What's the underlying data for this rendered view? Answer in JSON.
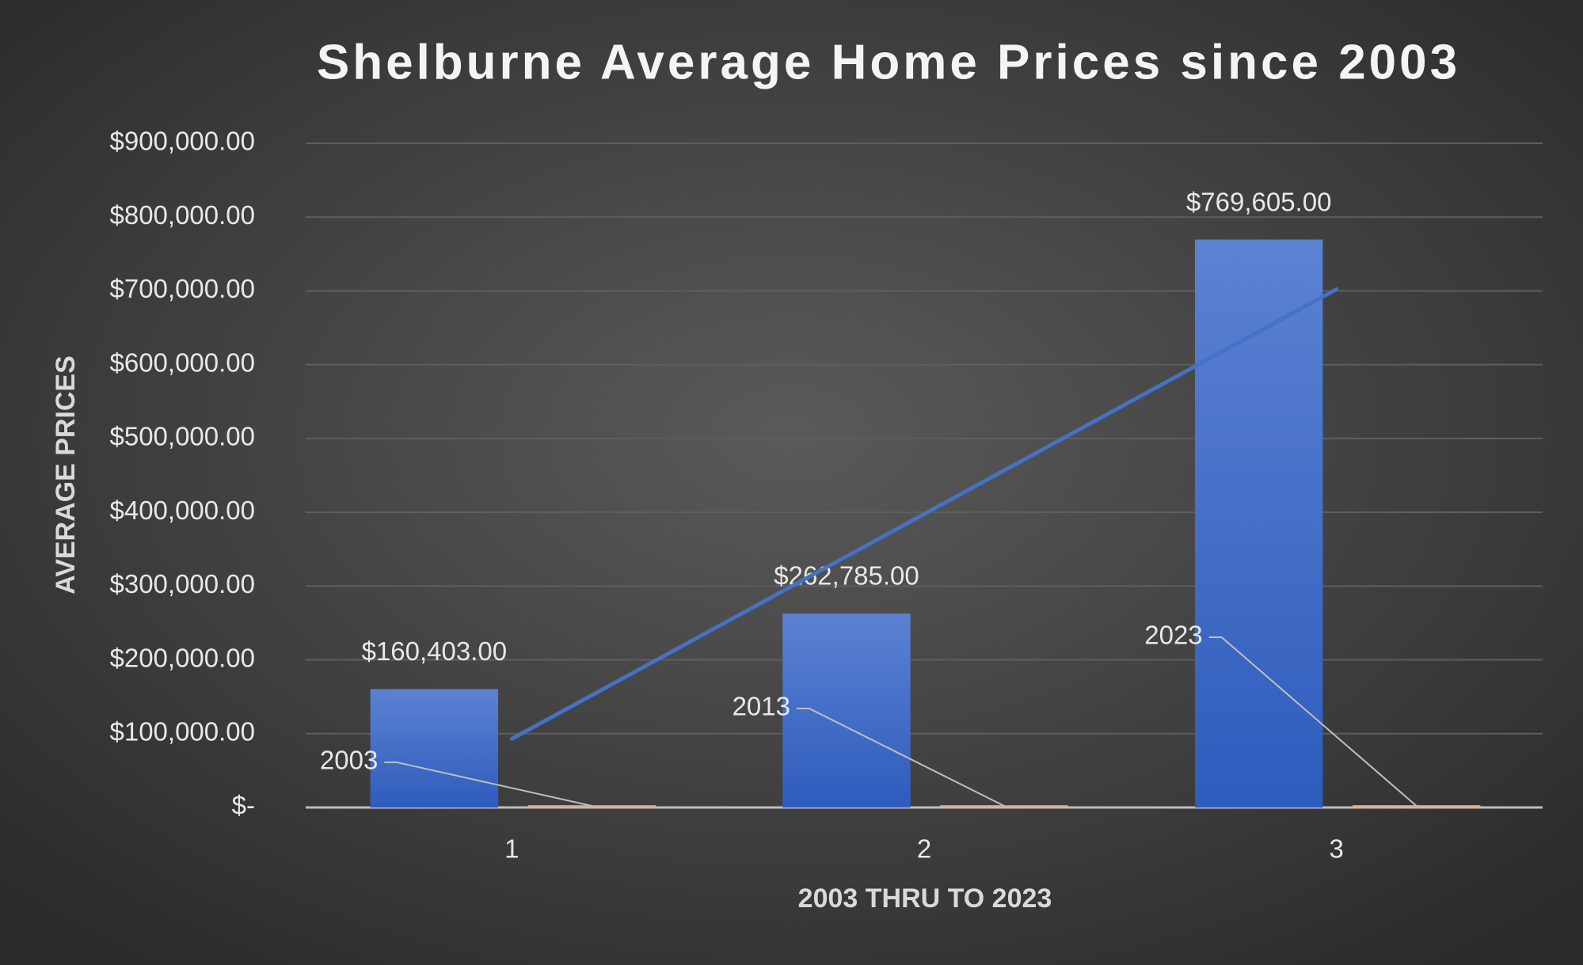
{
  "chart_data": {
    "type": "bar",
    "title": "Shelburne Average Home Prices  since 2003",
    "x_label": "2003 THRU TO 2023",
    "y_label": "AVERAGE PRICES",
    "categories": [
      "1",
      "2",
      "3"
    ],
    "series": [
      {
        "color": "#3f68c8",
        "values": [
          160403,
          262785,
          769605
        ],
        "value_labels": [
          "$160,403.00",
          "$262,785.00",
          "$769,605.00"
        ],
        "trendline": "linear"
      },
      {
        "color": "#e8a47a",
        "values": [
          2003,
          2013,
          2023
        ]
      }
    ],
    "ylim": [
      0,
      900000
    ],
    "yticks": [
      {
        "value": 0,
        "label": "$-"
      },
      {
        "value": 100000,
        "label": "$100,000.00"
      },
      {
        "value": 200000,
        "label": "$200,000.00"
      },
      {
        "value": 300000,
        "label": "$300,000.00"
      },
      {
        "value": 400000,
        "label": "$400,000.00"
      },
      {
        "value": 500000,
        "label": "$500,000.00"
      },
      {
        "value": 600000,
        "label": "$600,000.00"
      },
      {
        "value": 700000,
        "label": "$700,000.00"
      },
      {
        "value": 800000,
        "label": "$800,000.00"
      },
      {
        "value": 900000,
        "label": "$900,000.00"
      }
    ],
    "grid": true
  }
}
